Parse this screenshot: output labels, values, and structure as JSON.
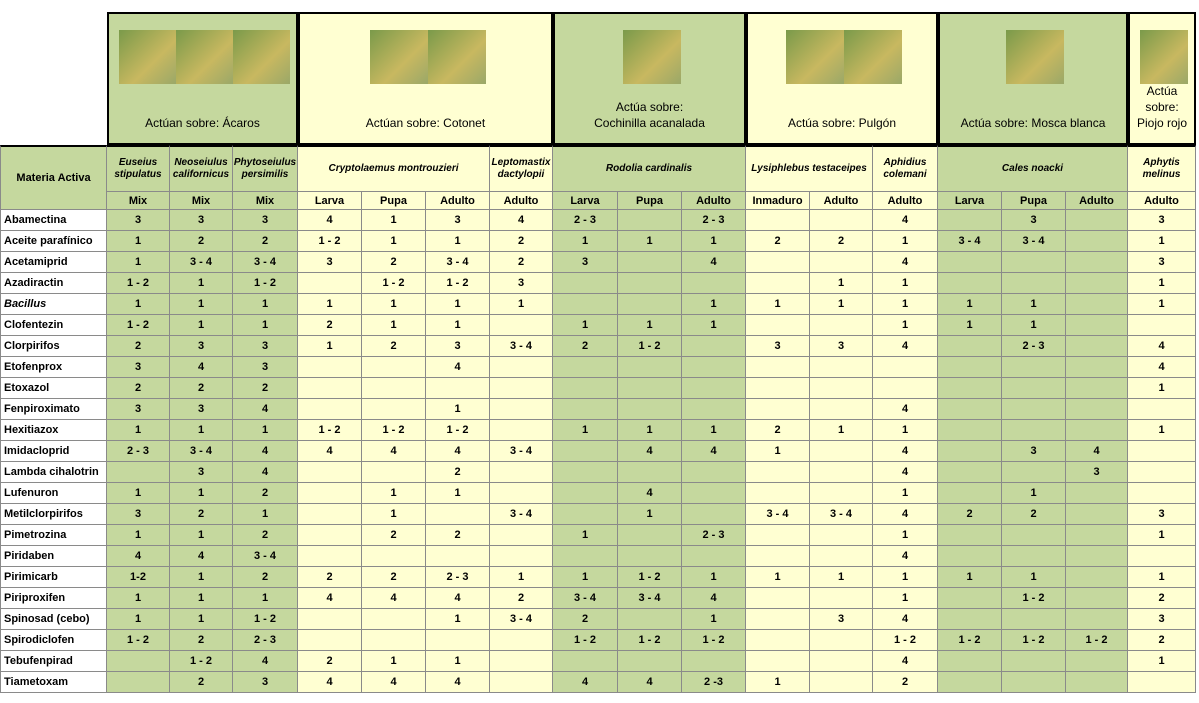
{
  "header": {
    "materia_activa": "Materia Activa"
  },
  "groups": [
    {
      "label": "Actúan sobre: Ácaros",
      "species": [
        {
          "name": "Euseius stipulatus",
          "stages": [
            "Mix"
          ]
        },
        {
          "name": "Neoseiulus californicus",
          "stages": [
            "Mix"
          ]
        },
        {
          "name": "Phytoseiulus persimilis",
          "stages": [
            "Mix"
          ]
        }
      ]
    },
    {
      "label": "Actúan sobre: Cotonet",
      "species": [
        {
          "name": "Cryptolaemus montrouzieri",
          "stages": [
            "Larva",
            "Pupa",
            "Adulto"
          ]
        },
        {
          "name": "Leptomastix dactylopii",
          "stages": [
            "Adulto"
          ]
        }
      ]
    },
    {
      "label": "Actúa sobre:\nCochinilla acanalada",
      "species": [
        {
          "name": "Rodolia cardinalis",
          "stages": [
            "Larva",
            "Pupa",
            "Adulto"
          ]
        }
      ]
    },
    {
      "label": "Actúa sobre:  Pulgón",
      "species": [
        {
          "name": "Lysiphlebus testaceipes",
          "stages": [
            "Inmaduro",
            "Adulto"
          ]
        },
        {
          "name": "Aphidius colemani",
          "stages": [
            "Adulto"
          ]
        }
      ]
    },
    {
      "label": "Actúa sobre:  Mosca blanca",
      "species": [
        {
          "name": "Cales noacki",
          "stages": [
            "Larva",
            "Pupa",
            "Adulto"
          ]
        }
      ]
    },
    {
      "label": "Actúa sobre: Piojo rojo",
      "species": [
        {
          "name": "Aphytis melinus",
          "stages": [
            "Adulto"
          ]
        }
      ]
    }
  ],
  "rows": [
    {
      "name": "Abamectina",
      "values": [
        "3",
        "3",
        "3",
        "4",
        "1",
        "3",
        "4",
        "2 - 3",
        null,
        "2 - 3",
        null,
        null,
        "4",
        null,
        "3",
        null,
        "3"
      ]
    },
    {
      "name": "Aceite parafínico",
      "values": [
        "1",
        "2",
        "2",
        "1 - 2",
        "1",
        "1",
        "2",
        "1",
        "1",
        "1",
        "2",
        "2",
        "1",
        "3 - 4",
        "3 - 4",
        null,
        "1"
      ]
    },
    {
      "name": "Acetamiprid",
      "values": [
        "1",
        "3 - 4",
        "3 - 4",
        "3",
        "2",
        "3 - 4",
        "2",
        "3",
        null,
        "4",
        null,
        null,
        "4",
        null,
        null,
        null,
        "3"
      ]
    },
    {
      "name": "Azadiractin",
      "values": [
        "1 - 2",
        "1",
        "1 - 2",
        null,
        "1 - 2",
        "1 - 2",
        "3",
        null,
        null,
        null,
        null,
        "1",
        "1",
        null,
        null,
        null,
        "1"
      ]
    },
    {
      "name": "Bacillus",
      "italic": true,
      "values": [
        "1",
        "1",
        "1",
        "1",
        "1",
        "1",
        "1",
        null,
        null,
        "1",
        "1",
        "1",
        "1",
        "1",
        "1",
        null,
        "1"
      ]
    },
    {
      "name": "Clofentezin",
      "values": [
        "1 - 2",
        "1",
        "1",
        "2",
        "1",
        "1",
        null,
        "1",
        "1",
        "1",
        null,
        null,
        "1",
        "1",
        "1",
        null,
        null
      ]
    },
    {
      "name": "Clorpirifos",
      "values": [
        "2",
        "3",
        "3",
        "1",
        "2",
        "3",
        "3 - 4",
        "2",
        "1 - 2",
        null,
        "3",
        "3",
        "4",
        null,
        "2 - 3",
        null,
        "4"
      ]
    },
    {
      "name": "Etofenprox",
      "values": [
        "3",
        "4",
        "3",
        null,
        null,
        "4",
        null,
        null,
        null,
        null,
        null,
        null,
        null,
        null,
        null,
        null,
        "4"
      ]
    },
    {
      "name": "Etoxazol",
      "values": [
        "2",
        "2",
        "2",
        null,
        null,
        null,
        null,
        null,
        null,
        null,
        null,
        null,
        null,
        null,
        null,
        null,
        "1"
      ]
    },
    {
      "name": "Fenpiroximato",
      "values": [
        "3",
        "3",
        "4",
        null,
        null,
        "1",
        null,
        null,
        null,
        null,
        null,
        null,
        "4",
        null,
        null,
        null,
        null
      ]
    },
    {
      "name": "Hexitiazox",
      "values": [
        "1",
        "1",
        "1",
        "1 - 2",
        "1 - 2",
        "1 - 2",
        null,
        "1",
        "1",
        "1",
        "2",
        "1",
        "1",
        null,
        null,
        null,
        "1"
      ]
    },
    {
      "name": "Imidacloprid",
      "values": [
        "2 - 3",
        "3 - 4",
        "4",
        "4",
        "4",
        "4",
        "3 - 4",
        null,
        "4",
        "4",
        "1",
        null,
        "4",
        null,
        "3",
        "4",
        null
      ]
    },
    {
      "name": "Lambda cihalotrin",
      "values": [
        null,
        "3",
        "4",
        null,
        null,
        "2",
        null,
        null,
        null,
        null,
        null,
        null,
        "4",
        null,
        null,
        "3",
        null
      ]
    },
    {
      "name": "Lufenuron",
      "values": [
        "1",
        "1",
        "2",
        null,
        "1",
        "1",
        null,
        null,
        "4",
        null,
        null,
        null,
        "1",
        null,
        "1",
        null,
        null
      ]
    },
    {
      "name": "Metilclorpirifos",
      "values": [
        "3",
        "2",
        "1",
        null,
        "1",
        null,
        "3 - 4",
        null,
        "1",
        null,
        "3 - 4",
        "3 - 4",
        "4",
        "2",
        "2",
        null,
        "3"
      ]
    },
    {
      "name": "Pimetrozina",
      "values": [
        "1",
        "1",
        "2",
        null,
        "2",
        "2",
        null,
        "1",
        null,
        "2 - 3",
        null,
        null,
        "1",
        null,
        null,
        null,
        "1"
      ]
    },
    {
      "name": "Piridaben",
      "values": [
        "4",
        "4",
        "3 - 4",
        null,
        null,
        null,
        null,
        null,
        null,
        null,
        null,
        null,
        "4",
        null,
        null,
        null,
        null
      ]
    },
    {
      "name": "Pirimicarb",
      "values": [
        "1-2",
        "1",
        "2",
        "2",
        "2",
        "2 - 3",
        "1",
        "1",
        "1 - 2",
        "1",
        "1",
        "1",
        "1",
        "1",
        "1",
        null,
        "1"
      ]
    },
    {
      "name": "Piriproxifen",
      "values": [
        "1",
        "1",
        "1",
        "4",
        "4",
        "4",
        "2",
        "3 - 4",
        "3 - 4",
        "4",
        null,
        null,
        "1",
        null,
        "1 - 2",
        null,
        "2"
      ]
    },
    {
      "name": "Spinosad (cebo)",
      "values": [
        "1",
        "1",
        "1 - 2",
        null,
        null,
        "1",
        "3 - 4",
        "2",
        null,
        "1",
        null,
        "3",
        "4",
        null,
        null,
        null,
        "3"
      ]
    },
    {
      "name": "Spirodiclofen",
      "values": [
        "1 - 2",
        "2",
        "2 - 3",
        null,
        null,
        null,
        null,
        "1 - 2",
        "1 - 2",
        "1 - 2",
        null,
        null,
        "1 - 2",
        "1 - 2",
        "1 - 2",
        "1 - 2",
        "2"
      ]
    },
    {
      "name": "Tebufenpirad",
      "values": [
        null,
        "1 - 2",
        "4",
        "2",
        "1",
        "1",
        null,
        null,
        null,
        null,
        null,
        null,
        "4",
        null,
        null,
        null,
        "1"
      ]
    },
    {
      "name": "Tiametoxam",
      "values": [
        null,
        "2",
        "3",
        "4",
        "4",
        "4",
        null,
        "4",
        "4",
        "2 -3",
        "1",
        null,
        "2",
        null,
        null,
        null,
        null
      ]
    }
  ]
}
